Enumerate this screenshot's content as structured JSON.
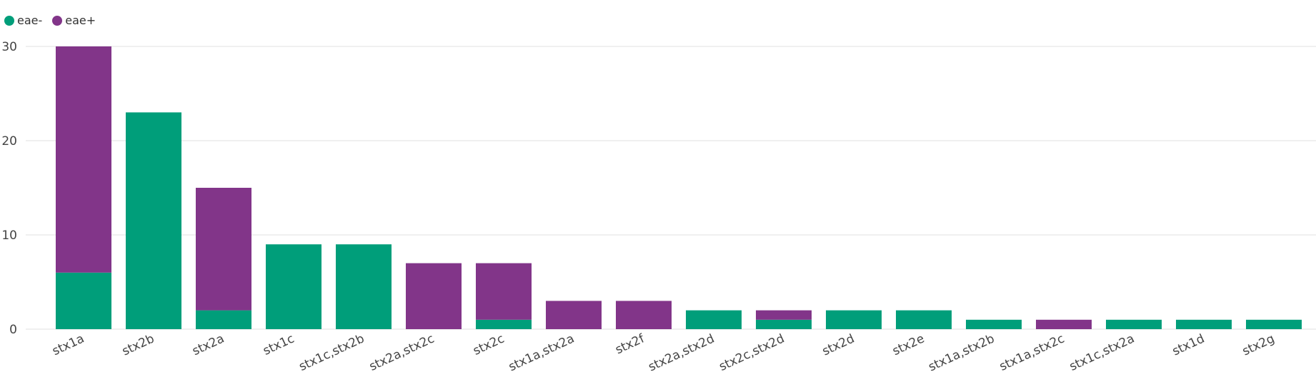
{
  "chart_data": {
    "type": "bar",
    "stacked": true,
    "categories": [
      "stx1a",
      "stx2b",
      "stx2a",
      "stx1c",
      "stx1c,stx2b",
      "stx2a,stx2c",
      "stx2c",
      "stx1a,stx2a",
      "stx2f",
      "stx2a,stx2d",
      "stx2c,stx2d",
      "stx2d",
      "stx2e",
      "stx1a,stx2b",
      "stx1a,stx2c",
      "stx1c,stx2a",
      "stx1d",
      "stx2g"
    ],
    "series": [
      {
        "name": "eae-",
        "color": "#009e7a",
        "values": [
          6,
          23,
          2,
          9,
          9,
          0,
          1,
          0,
          0,
          2,
          1,
          2,
          2,
          1,
          0,
          1,
          1,
          1
        ]
      },
      {
        "name": "eae+",
        "color": "#823589",
        "values": [
          24,
          0,
          13,
          0,
          0,
          7,
          6,
          3,
          3,
          0,
          1,
          0,
          0,
          0,
          1,
          0,
          0,
          0
        ]
      }
    ],
    "yticks": [
      0,
      10,
      20,
      30
    ],
    "ylim": [
      0,
      30
    ],
    "grid": true,
    "legend": "top-left"
  }
}
